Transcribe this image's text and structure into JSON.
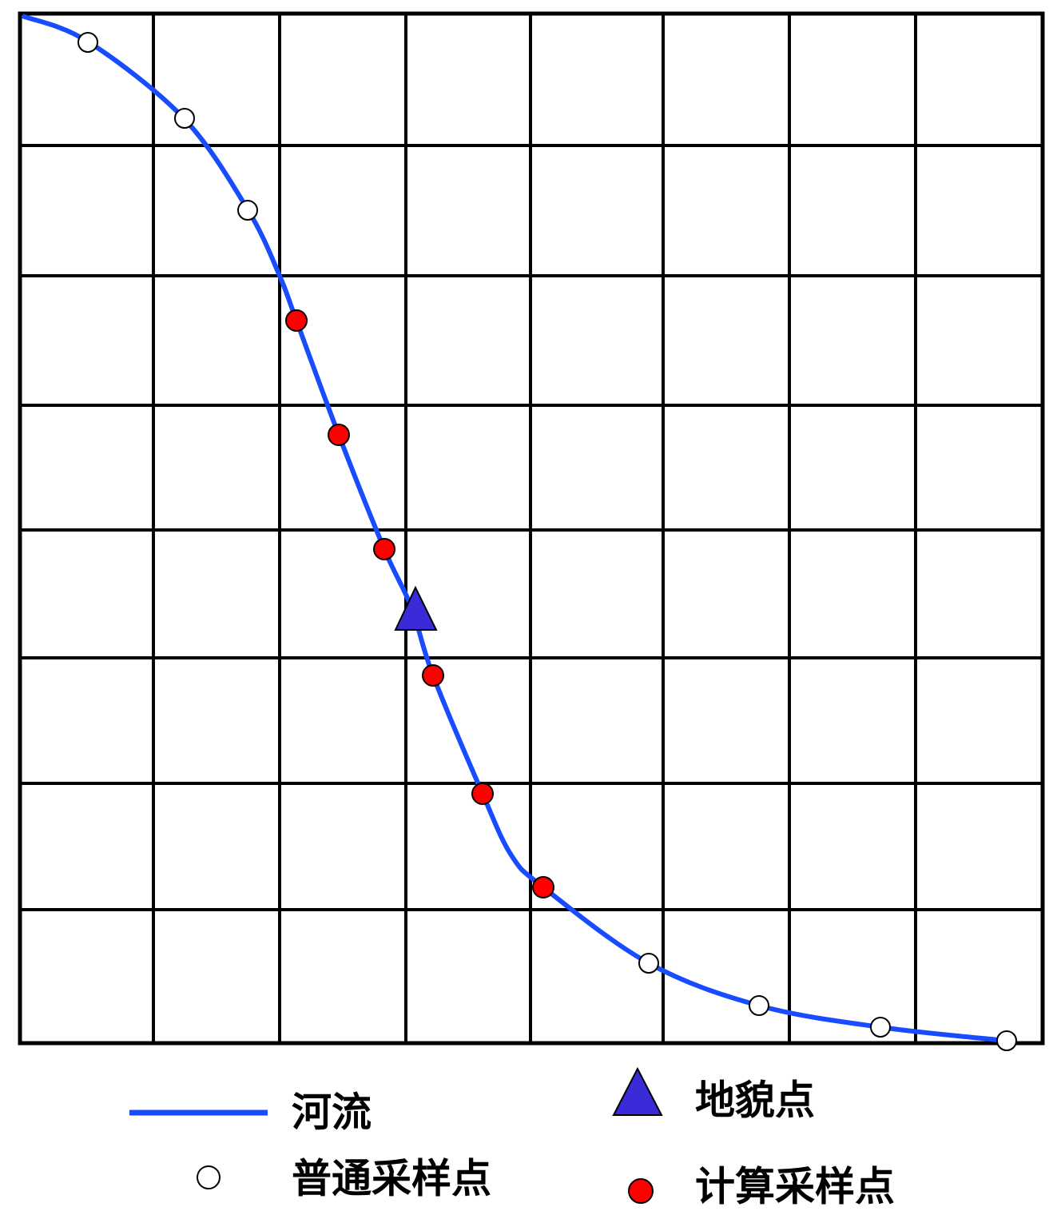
{
  "legend": {
    "river": "河流",
    "landform_point": "地貌点",
    "normal_sample": "普通采样点",
    "computed_sample": "计算采样点"
  }
}
